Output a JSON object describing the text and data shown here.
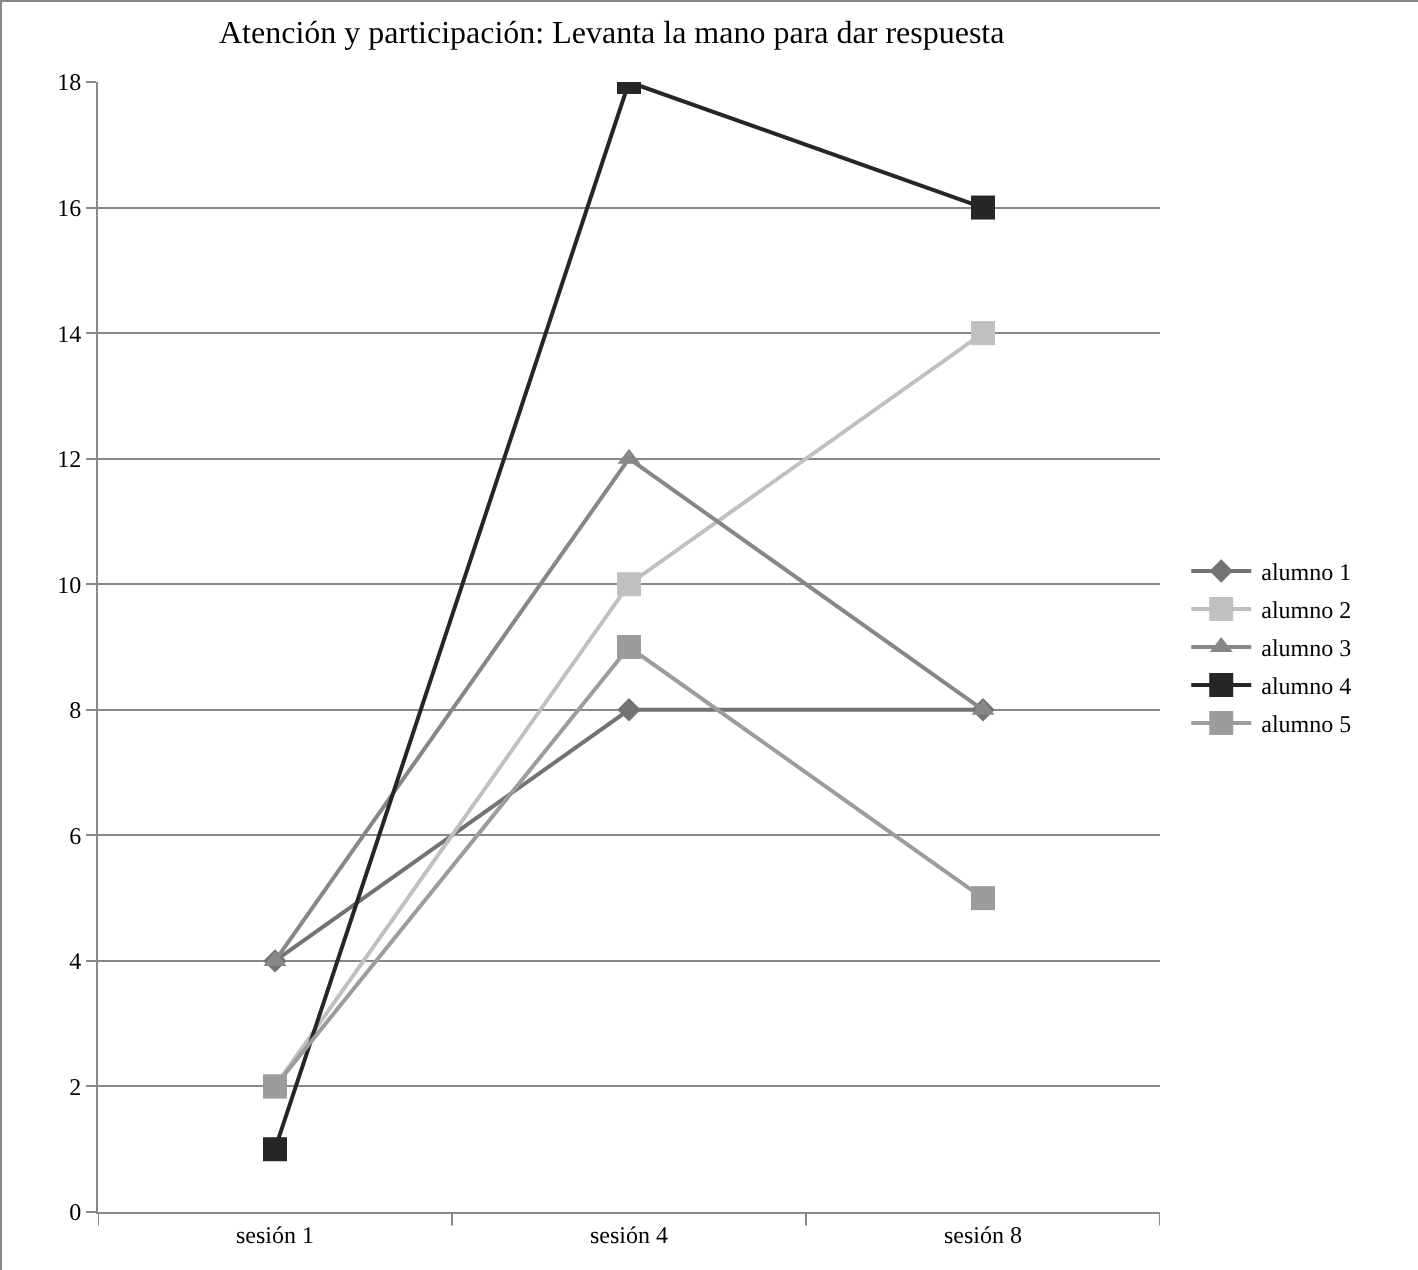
{
  "chart_data": {
    "type": "line",
    "title": "Atención y participación: Levanta la mano para dar respuesta",
    "categories": [
      "sesión 1",
      "sesión 4",
      "sesión 8"
    ],
    "series": [
      {
        "name": "alumno 1",
        "color": "#737373",
        "marker": "diamond",
        "values": [
          4,
          8,
          8
        ]
      },
      {
        "name": "alumno 2",
        "color": "#c0c0c0",
        "marker": "square",
        "values": [
          2,
          10,
          14
        ]
      },
      {
        "name": "alumno 3",
        "color": "#878787",
        "marker": "triangle",
        "values": [
          4,
          12,
          8
        ]
      },
      {
        "name": "alumno 4",
        "color": "#262626",
        "marker": "square",
        "values": [
          1,
          18,
          16
        ]
      },
      {
        "name": "alumno 5",
        "color": "#9c9c9c",
        "marker": "square",
        "values": [
          2,
          9,
          5
        ]
      }
    ],
    "ylim": [
      0,
      18
    ],
    "yticks": [
      0,
      2,
      4,
      6,
      8,
      10,
      12,
      14,
      16,
      18
    ],
    "grid": "y",
    "legend": "right",
    "line_style": "solid"
  }
}
